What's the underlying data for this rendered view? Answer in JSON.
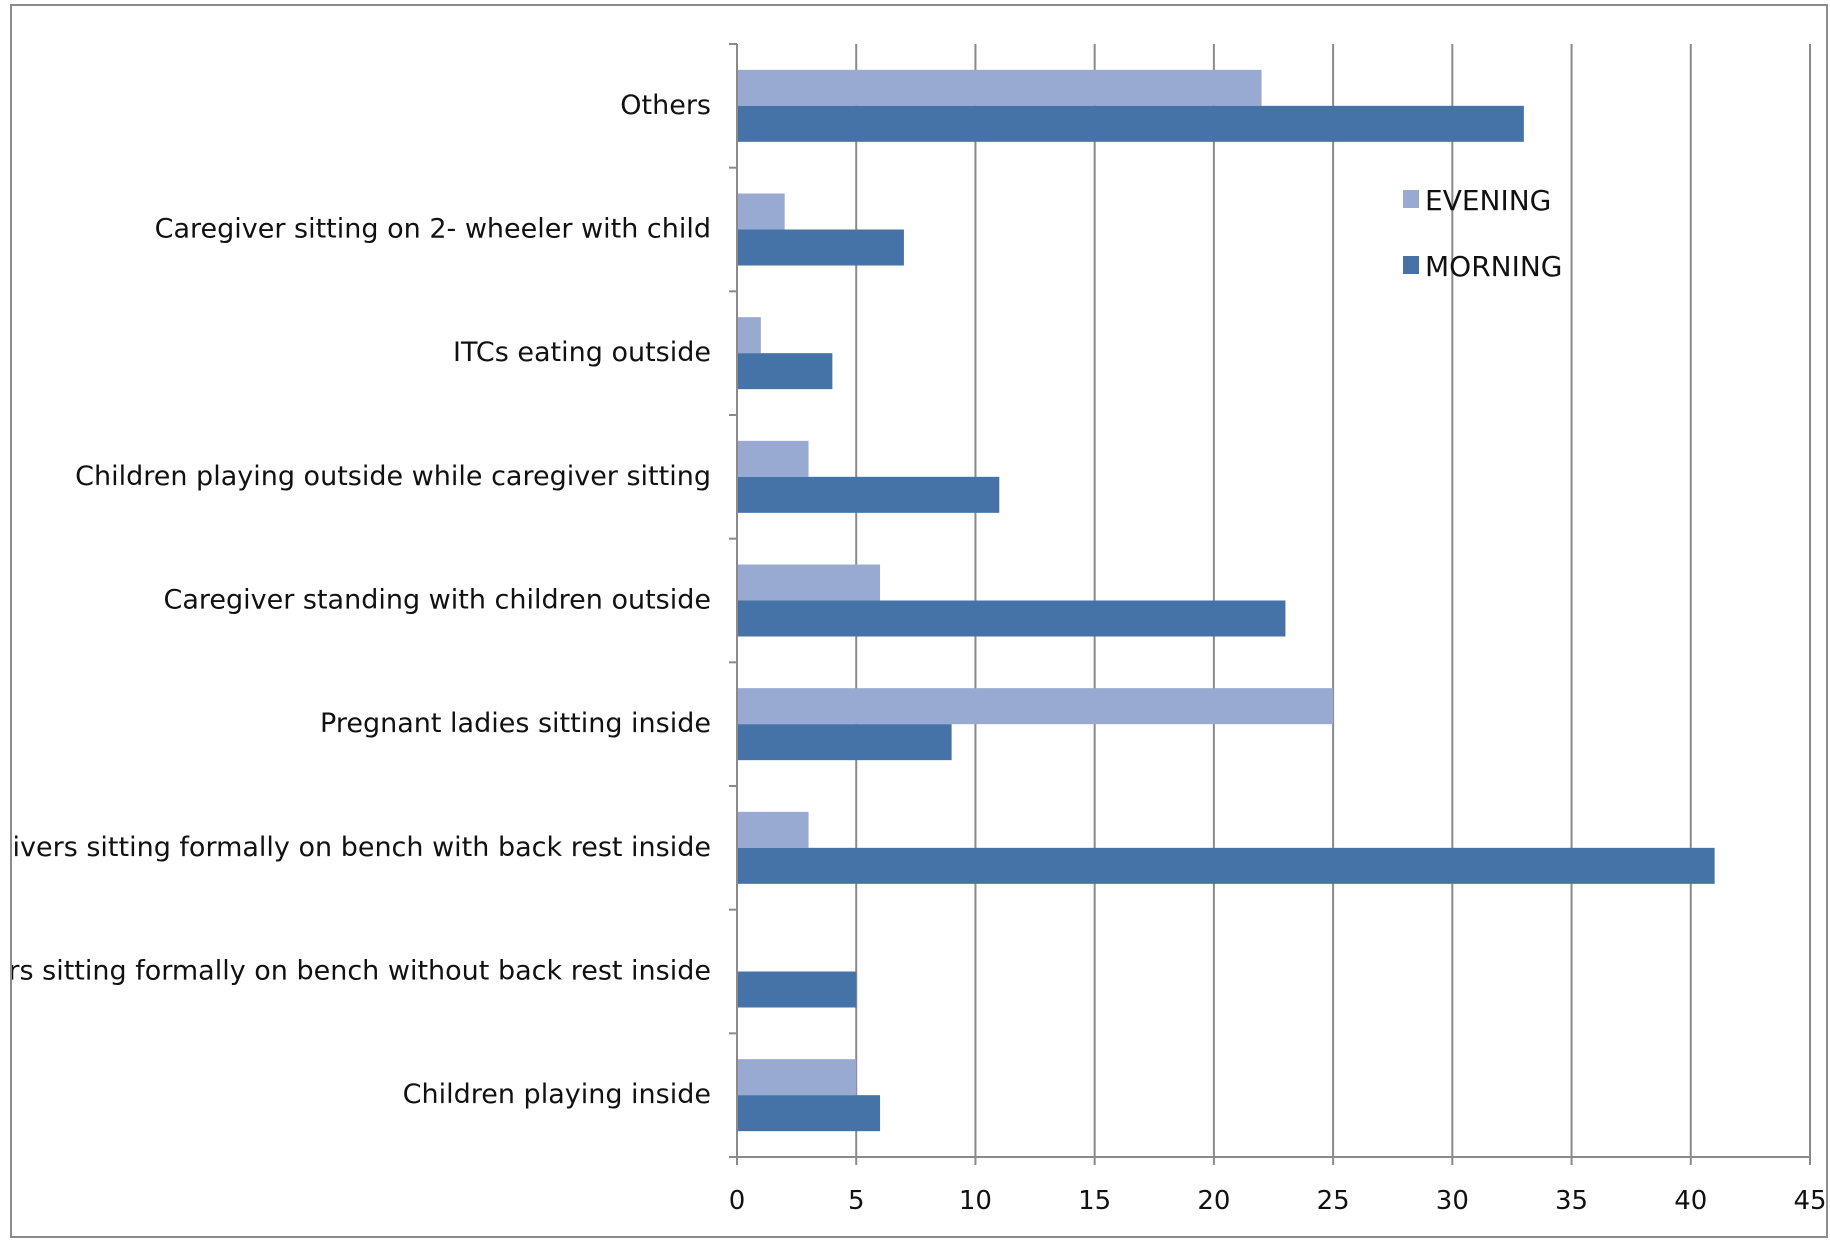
{
  "chart_data": {
    "type": "bar",
    "orientation": "horizontal",
    "title": "",
    "xlabel": "",
    "ylabel": "",
    "categories": [
      "Others",
      "Caregiver sitting on 2- wheeler with child",
      "ITCs eating outside",
      "Children playing outside while caregiver sitting",
      "Caregiver standing with children outside",
      "Pregnant ladies sitting inside",
      "Caregivers sitting formally on bench with back rest inside",
      "Caregivers sitting formally on bench without back rest inside",
      "Children playing inside"
    ],
    "series": [
      {
        "name": "EVENING",
        "color": "#98AAD2",
        "values": [
          22,
          2,
          1,
          3,
          6,
          25,
          3,
          0,
          5
        ]
      },
      {
        "name": "MORNING",
        "color": "#4572A7",
        "values": [
          33,
          7,
          4,
          11,
          23,
          9,
          41,
          5,
          6
        ]
      }
    ],
    "xlim": [
      0,
      45
    ],
    "xticks": [
      0,
      5,
      10,
      15,
      20,
      25,
      30,
      35,
      40,
      45
    ],
    "grid": true,
    "legend_position": "top-right"
  }
}
